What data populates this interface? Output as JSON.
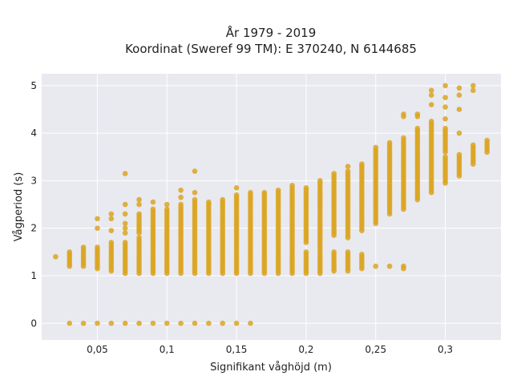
{
  "chart_data": {
    "type": "scatter",
    "title": "År 1979 - 2019",
    "subtitle": "Koordinat (Sweref 99 TM): E 370240, N 6144685",
    "xlabel": "Signifikant våghöjd (m)",
    "ylabel": "Vågperiod (s)",
    "xlim": [
      0.01,
      0.34
    ],
    "ylim": [
      -0.35,
      5.25
    ],
    "grid": true,
    "legend": "none",
    "marker_color": "#DAA520",
    "background_color": "#E9E9F0",
    "x_ticks": [
      {
        "value": 0.05,
        "label": "0,05"
      },
      {
        "value": 0.1,
        "label": "0,1"
      },
      {
        "value": 0.15,
        "label": "0,15"
      },
      {
        "value": 0.2,
        "label": "0,2"
      },
      {
        "value": 0.25,
        "label": "0,25"
      },
      {
        "value": 0.3,
        "label": "0,3"
      }
    ],
    "y_ticks": [
      {
        "value": 0,
        "label": "0"
      },
      {
        "value": 1,
        "label": "1"
      },
      {
        "value": 2,
        "label": "2"
      },
      {
        "value": 3,
        "label": "3"
      },
      {
        "value": 4,
        "label": "4"
      },
      {
        "value": 5,
        "label": "5"
      }
    ],
    "columns": [
      {
        "x": 0.02,
        "ranges": [
          [
            1.4,
            1.4
          ]
        ],
        "extra": []
      },
      {
        "x": 0.03,
        "ranges": [
          [
            1.2,
            1.5
          ]
        ],
        "extra": [
          0
        ]
      },
      {
        "x": 0.04,
        "ranges": [
          [
            1.2,
            1.6
          ]
        ],
        "extra": [
          0
        ]
      },
      {
        "x": 0.05,
        "ranges": [
          [
            1.15,
            1.6
          ]
        ],
        "extra": [
          2.0,
          2.2,
          0
        ]
      },
      {
        "x": 0.06,
        "ranges": [
          [
            1.1,
            1.7
          ]
        ],
        "extra": [
          1.95,
          2.2,
          2.3,
          0
        ]
      },
      {
        "x": 0.07,
        "ranges": [
          [
            1.05,
            1.7
          ]
        ],
        "extra": [
          1.9,
          2.0,
          2.1,
          2.3,
          2.5,
          3.15,
          0
        ]
      },
      {
        "x": 0.08,
        "ranges": [
          [
            1.05,
            1.8
          ],
          [
            1.9,
            2.3
          ]
        ],
        "extra": [
          2.5,
          2.6,
          0
        ]
      },
      {
        "x": 0.09,
        "ranges": [
          [
            1.05,
            2.4
          ]
        ],
        "extra": [
          2.55,
          0
        ]
      },
      {
        "x": 0.1,
        "ranges": [
          [
            1.05,
            2.4
          ]
        ],
        "extra": [
          2.5,
          0
        ]
      },
      {
        "x": 0.11,
        "ranges": [
          [
            1.05,
            2.5
          ]
        ],
        "extra": [
          2.65,
          2.8,
          0
        ]
      },
      {
        "x": 0.12,
        "ranges": [
          [
            1.05,
            2.6
          ]
        ],
        "extra": [
          2.75,
          3.2,
          0
        ]
      },
      {
        "x": 0.13,
        "ranges": [
          [
            1.05,
            2.55
          ]
        ],
        "extra": [
          0
        ]
      },
      {
        "x": 0.14,
        "ranges": [
          [
            1.05,
            2.6
          ]
        ],
        "extra": [
          0
        ]
      },
      {
        "x": 0.15,
        "ranges": [
          [
            1.05,
            2.7
          ]
        ],
        "extra": [
          2.85,
          0
        ]
      },
      {
        "x": 0.16,
        "ranges": [
          [
            1.05,
            2.75
          ]
        ],
        "extra": [
          0
        ]
      },
      {
        "x": 0.17,
        "ranges": [
          [
            1.05,
            2.75
          ]
        ],
        "extra": []
      },
      {
        "x": 0.18,
        "ranges": [
          [
            1.05,
            2.8
          ]
        ],
        "extra": []
      },
      {
        "x": 0.19,
        "ranges": [
          [
            1.05,
            2.9
          ]
        ],
        "extra": []
      },
      {
        "x": 0.2,
        "ranges": [
          [
            1.05,
            1.5
          ],
          [
            1.7,
            2.85
          ]
        ],
        "extra": []
      },
      {
        "x": 0.21,
        "ranges": [
          [
            1.05,
            3.0
          ]
        ],
        "extra": []
      },
      {
        "x": 0.22,
        "ranges": [
          [
            1.1,
            1.5
          ],
          [
            1.85,
            3.15
          ]
        ],
        "extra": []
      },
      {
        "x": 0.23,
        "ranges": [
          [
            1.1,
            1.5
          ],
          [
            1.8,
            3.2
          ]
        ],
        "extra": [
          3.3
        ]
      },
      {
        "x": 0.24,
        "ranges": [
          [
            1.15,
            1.4
          ],
          [
            1.95,
            3.35
          ]
        ],
        "extra": [
          1.45
        ]
      },
      {
        "x": 0.25,
        "ranges": [
          [
            2.1,
            3.7
          ]
        ],
        "extra": [
          1.2
        ]
      },
      {
        "x": 0.26,
        "ranges": [
          [
            2.3,
            3.8
          ]
        ],
        "extra": [
          1.2
        ]
      },
      {
        "x": 0.27,
        "ranges": [
          [
            2.4,
            3.9
          ]
        ],
        "extra": [
          1.15,
          1.2,
          4.35,
          4.4
        ]
      },
      {
        "x": 0.28,
        "ranges": [
          [
            2.6,
            4.1
          ]
        ],
        "extra": [
          4.35,
          4.4
        ]
      },
      {
        "x": 0.29,
        "ranges": [
          [
            2.75,
            4.25
          ]
        ],
        "extra": [
          4.6,
          4.8,
          4.9
        ]
      },
      {
        "x": 0.3,
        "ranges": [
          [
            2.95,
            3.5
          ],
          [
            3.6,
            4.1
          ]
        ],
        "extra": [
          4.3,
          4.55,
          4.75,
          5.0
        ]
      },
      {
        "x": 0.31,
        "ranges": [
          [
            3.15,
            3.55
          ]
        ],
        "extra": [
          3.1,
          4.0,
          4.5,
          4.8,
          4.95
        ]
      },
      {
        "x": 0.32,
        "ranges": [
          [
            3.35,
            3.75
          ]
        ],
        "extra": [
          4.9,
          5.0
        ]
      },
      {
        "x": 0.33,
        "ranges": [
          [
            3.6,
            3.85
          ]
        ],
        "extra": []
      }
    ]
  }
}
